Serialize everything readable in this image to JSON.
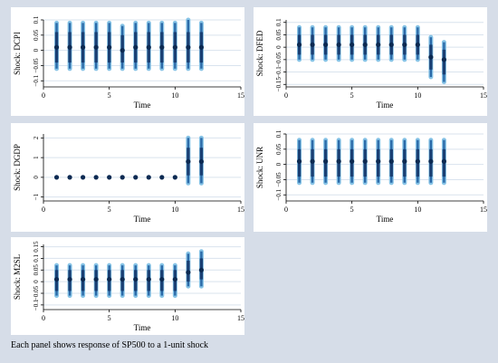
{
  "caption": "Each panel shows response of SP500 to a 1-unit shock",
  "colors": {
    "figure_bg": "#d6dde8",
    "panel_bg": "#ffffff",
    "grid": "#d9e3ee",
    "axis": "#000000",
    "point": "#0c2a52",
    "band_inner": "#1a3f73",
    "band_mid": "#2c6aa8",
    "band_outer": "#86c3e6"
  },
  "chart_data": [
    {
      "type": "scatter",
      "name": "DCPI",
      "xlabel": "Time",
      "ylabel": "Shock: DCPI",
      "xlim": [
        0,
        15
      ],
      "xticks": [
        0,
        5,
        10,
        15
      ],
      "ylim": [
        -0.12,
        0.1
      ],
      "yticks": [
        -0.1,
        -0.05,
        0,
        0.05,
        0.1
      ],
      "ytick_labels": [
        "−0.1",
        "−0.05",
        "0",
        "0.05",
        "0.1"
      ],
      "x": [
        1,
        2,
        3,
        4,
        5,
        6,
        7,
        8,
        9,
        10,
        11,
        12
      ],
      "y": [
        0.01,
        0.01,
        0.01,
        0.01,
        0.01,
        0.0,
        0.01,
        0.01,
        0.01,
        0.01,
        0.01,
        0.01
      ],
      "band_outer": [
        [
          -0.06,
          0.09
        ],
        [
          -0.06,
          0.09
        ],
        [
          -0.06,
          0.09
        ],
        [
          -0.06,
          0.09
        ],
        [
          -0.06,
          0.09
        ],
        [
          -0.06,
          0.08
        ],
        [
          -0.06,
          0.09
        ],
        [
          -0.06,
          0.09
        ],
        [
          -0.06,
          0.09
        ],
        [
          -0.06,
          0.09
        ],
        [
          -0.06,
          0.1
        ],
        [
          -0.06,
          0.09
        ]
      ],
      "band_inner": [
        [
          -0.04,
          0.06
        ],
        [
          -0.04,
          0.06
        ],
        [
          -0.04,
          0.06
        ],
        [
          -0.04,
          0.06
        ],
        [
          -0.04,
          0.06
        ],
        [
          -0.04,
          0.05
        ],
        [
          -0.04,
          0.06
        ],
        [
          -0.04,
          0.06
        ],
        [
          -0.04,
          0.06
        ],
        [
          -0.04,
          0.06
        ],
        [
          -0.04,
          0.06
        ],
        [
          -0.04,
          0.06
        ]
      ]
    },
    {
      "type": "scatter",
      "name": "DFED",
      "xlabel": "Time",
      "ylabel": "Shock: DFED",
      "xlim": [
        0,
        15
      ],
      "xticks": [
        0,
        5,
        10,
        15
      ],
      "ylim": [
        -0.16,
        0.11
      ],
      "yticks": [
        -0.15,
        -0.1,
        -0.05,
        0,
        0.05,
        0.1
      ],
      "ytick_labels": [
        "−0.15",
        "−0.1",
        "−0.05",
        "0",
        "0.05",
        "0.1"
      ],
      "x": [
        1,
        2,
        3,
        4,
        5,
        6,
        7,
        8,
        9,
        10,
        11,
        12
      ],
      "y": [
        0.01,
        0.01,
        0.01,
        0.01,
        0.01,
        0.01,
        0.01,
        0.01,
        0.01,
        0.01,
        -0.04,
        -0.05
      ],
      "band_outer": [
        [
          -0.05,
          0.08
        ],
        [
          -0.05,
          0.08
        ],
        [
          -0.05,
          0.08
        ],
        [
          -0.05,
          0.08
        ],
        [
          -0.05,
          0.08
        ],
        [
          -0.05,
          0.08
        ],
        [
          -0.05,
          0.08
        ],
        [
          -0.05,
          0.08
        ],
        [
          -0.05,
          0.08
        ],
        [
          -0.05,
          0.08
        ],
        [
          -0.12,
          0.04
        ],
        [
          -0.14,
          0.02
        ]
      ],
      "band_inner": [
        [
          -0.03,
          0.05
        ],
        [
          -0.03,
          0.05
        ],
        [
          -0.03,
          0.05
        ],
        [
          -0.03,
          0.05
        ],
        [
          -0.03,
          0.05
        ],
        [
          -0.03,
          0.05
        ],
        [
          -0.03,
          0.05
        ],
        [
          -0.03,
          0.05
        ],
        [
          -0.03,
          0.05
        ],
        [
          -0.03,
          0.05
        ],
        [
          -0.09,
          0.01
        ],
        [
          -0.11,
          -0.01
        ]
      ]
    },
    {
      "type": "scatter",
      "name": "DGDP",
      "xlabel": "Time",
      "ylabel": "Shock: DGDP",
      "xlim": [
        0,
        15
      ],
      "xticks": [
        0,
        5,
        10,
        15
      ],
      "ylim": [
        -1.2,
        2.2
      ],
      "yticks": [
        -1,
        0,
        1,
        2
      ],
      "ytick_labels": [
        "−1",
        "0",
        "1",
        "2"
      ],
      "x": [
        1,
        2,
        3,
        4,
        5,
        6,
        7,
        8,
        9,
        10,
        11,
        12
      ],
      "y": [
        0.0,
        0.0,
        0.0,
        0.0,
        0.0,
        0.0,
        0.0,
        0.0,
        0.0,
        0.0,
        0.8,
        0.8
      ],
      "band_outer": [
        [
          0.0,
          0.0
        ],
        [
          0.0,
          0.0
        ],
        [
          0.0,
          0.0
        ],
        [
          0.0,
          0.0
        ],
        [
          0.0,
          0.0
        ],
        [
          0.0,
          0.0
        ],
        [
          0.0,
          0.0
        ],
        [
          0.0,
          0.0
        ],
        [
          0.0,
          0.0
        ],
        [
          0.0,
          0.0
        ],
        [
          -0.3,
          2.0
        ],
        [
          -0.3,
          2.0
        ]
      ],
      "band_inner": [
        [
          0.0,
          0.0
        ],
        [
          0.0,
          0.0
        ],
        [
          0.0,
          0.0
        ],
        [
          0.0,
          0.0
        ],
        [
          0.0,
          0.0
        ],
        [
          0.0,
          0.0
        ],
        [
          0.0,
          0.0
        ],
        [
          0.0,
          0.0
        ],
        [
          0.0,
          0.0
        ],
        [
          0.0,
          0.0
        ],
        [
          0.1,
          1.5
        ],
        [
          0.1,
          1.5
        ]
      ]
    },
    {
      "type": "scatter",
      "name": "UNR",
      "xlabel": "Time",
      "ylabel": "Shock: UNR",
      "xlim": [
        0,
        15
      ],
      "xticks": [
        0,
        5,
        10,
        15
      ],
      "ylim": [
        -0.12,
        0.1
      ],
      "yticks": [
        -0.1,
        -0.05,
        0,
        0.05,
        0.1
      ],
      "ytick_labels": [
        "−0.1",
        "−0.05",
        "0",
        "0.05",
        "0.1"
      ],
      "x": [
        1,
        2,
        3,
        4,
        5,
        6,
        7,
        8,
        9,
        10,
        11,
        12
      ],
      "y": [
        0.01,
        0.01,
        0.01,
        0.01,
        0.01,
        0.01,
        0.01,
        0.01,
        0.01,
        0.01,
        0.01,
        0.01
      ],
      "band_outer": [
        [
          -0.06,
          0.08
        ],
        [
          -0.06,
          0.08
        ],
        [
          -0.06,
          0.08
        ],
        [
          -0.06,
          0.08
        ],
        [
          -0.06,
          0.08
        ],
        [
          -0.06,
          0.08
        ],
        [
          -0.06,
          0.08
        ],
        [
          -0.06,
          0.08
        ],
        [
          -0.06,
          0.08
        ],
        [
          -0.06,
          0.08
        ],
        [
          -0.06,
          0.08
        ],
        [
          -0.06,
          0.08
        ]
      ],
      "band_inner": [
        [
          -0.04,
          0.05
        ],
        [
          -0.04,
          0.05
        ],
        [
          -0.04,
          0.05
        ],
        [
          -0.04,
          0.05
        ],
        [
          -0.04,
          0.05
        ],
        [
          -0.04,
          0.05
        ],
        [
          -0.04,
          0.05
        ],
        [
          -0.04,
          0.05
        ],
        [
          -0.04,
          0.05
        ],
        [
          -0.04,
          0.05
        ],
        [
          -0.04,
          0.05
        ],
        [
          -0.04,
          0.05
        ]
      ]
    },
    {
      "type": "scatter",
      "name": "M2SL",
      "xlabel": "Time",
      "ylabel": "Shock: M2SL",
      "xlim": [
        0,
        15
      ],
      "xticks": [
        0,
        5,
        10,
        15
      ],
      "ylim": [
        -0.12,
        0.16
      ],
      "yticks": [
        -0.1,
        -0.05,
        0,
        0.05,
        0.1,
        0.15
      ],
      "ytick_labels": [
        "−0.1",
        "−0.05",
        "0",
        "0.05",
        "0.1",
        "0.15"
      ],
      "x": [
        1,
        2,
        3,
        4,
        5,
        6,
        7,
        8,
        9,
        10,
        11,
        12
      ],
      "y": [
        0.01,
        0.01,
        0.01,
        0.01,
        0.01,
        0.01,
        0.01,
        0.01,
        0.01,
        0.01,
        0.04,
        0.05
      ],
      "band_outer": [
        [
          -0.06,
          0.07
        ],
        [
          -0.06,
          0.07
        ],
        [
          -0.06,
          0.07
        ],
        [
          -0.06,
          0.07
        ],
        [
          -0.06,
          0.07
        ],
        [
          -0.06,
          0.07
        ],
        [
          -0.06,
          0.07
        ],
        [
          -0.06,
          0.07
        ],
        [
          -0.06,
          0.07
        ],
        [
          -0.06,
          0.07
        ],
        [
          -0.02,
          0.12
        ],
        [
          -0.02,
          0.13
        ]
      ],
      "band_inner": [
        [
          -0.04,
          0.05
        ],
        [
          -0.04,
          0.05
        ],
        [
          -0.04,
          0.05
        ],
        [
          -0.04,
          0.05
        ],
        [
          -0.04,
          0.05
        ],
        [
          -0.04,
          0.05
        ],
        [
          -0.04,
          0.05
        ],
        [
          -0.04,
          0.05
        ],
        [
          -0.04,
          0.05
        ],
        [
          -0.04,
          0.05
        ],
        [
          0.0,
          0.09
        ],
        [
          0.01,
          0.1
        ]
      ]
    }
  ]
}
